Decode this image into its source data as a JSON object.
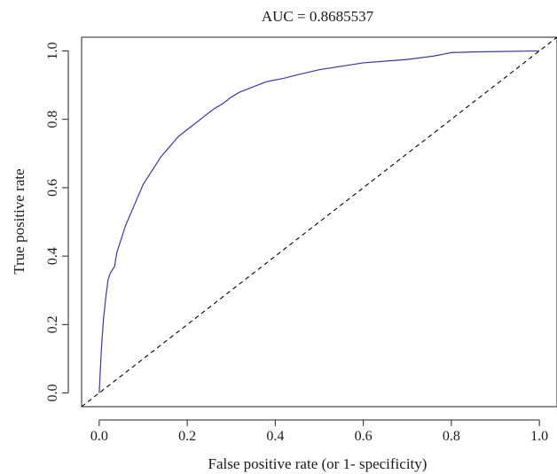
{
  "chart_data": {
    "type": "line",
    "title": "AUC = 0.8685537",
    "xlabel": "False positive rate (or 1- specificity)",
    "ylabel": "True positive rate",
    "xlim": [
      -0.04,
      1.04
    ],
    "ylim": [
      -0.04,
      1.04
    ],
    "x_ticks": [
      "0.0",
      "0.2",
      "0.4",
      "0.6",
      "0.8",
      "1.0"
    ],
    "y_ticks": [
      "0.0",
      "0.2",
      "0.4",
      "0.6",
      "0.8",
      "1.0"
    ],
    "grid": false,
    "legend": "none",
    "series": [
      {
        "color": "#3a3a9a",
        "style": "solid",
        "x": [
          0.0,
          0.005,
          0.01,
          0.015,
          0.02,
          0.025,
          0.03,
          0.035,
          0.04,
          0.05,
          0.06,
          0.08,
          0.1,
          0.12,
          0.14,
          0.16,
          0.18,
          0.2,
          0.22,
          0.24,
          0.26,
          0.28,
          0.3,
          0.32,
          0.34,
          0.36,
          0.38,
          0.4,
          0.42,
          0.45,
          0.5,
          0.55,
          0.6,
          0.65,
          0.7,
          0.76,
          0.78,
          0.8,
          0.85,
          0.9,
          1.0
        ],
        "y": [
          0.0,
          0.13,
          0.22,
          0.28,
          0.33,
          0.35,
          0.36,
          0.37,
          0.41,
          0.45,
          0.49,
          0.55,
          0.61,
          0.65,
          0.69,
          0.72,
          0.75,
          0.77,
          0.79,
          0.81,
          0.83,
          0.845,
          0.865,
          0.88,
          0.89,
          0.9,
          0.91,
          0.915,
          0.92,
          0.93,
          0.945,
          0.955,
          0.965,
          0.97,
          0.975,
          0.985,
          0.99,
          0.995,
          0.997,
          0.998,
          1.0
        ]
      },
      {
        "color": "#000000",
        "style": "dashed",
        "x": [
          -0.04,
          1.04
        ],
        "y": [
          -0.04,
          1.04
        ]
      }
    ]
  }
}
